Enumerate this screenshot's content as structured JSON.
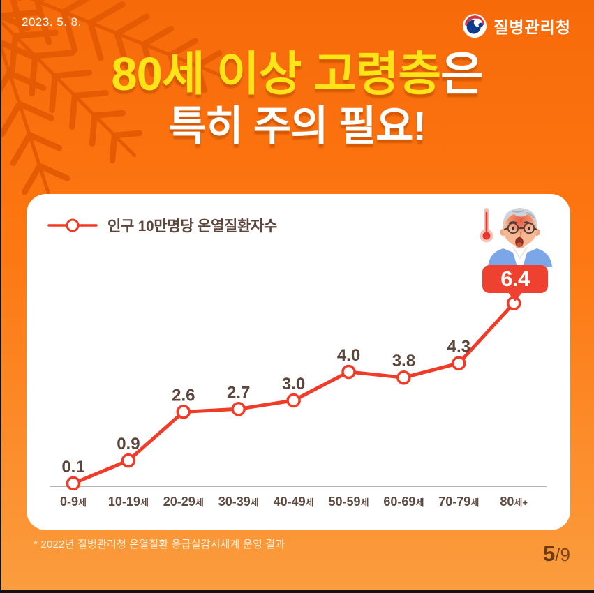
{
  "header": {
    "date": "2023. 5. 8.",
    "agency": "질병관리청"
  },
  "title": {
    "line1_highlight": "80세 이상 고령층",
    "line1_rest": "은",
    "line2": "특히 주의 필요!"
  },
  "chart_data": {
    "type": "line",
    "legend": "인구 10만명당 온열질환자수",
    "categories": [
      "0-9세",
      "10-19세",
      "20-29세",
      "30-39세",
      "40-49세",
      "50-59세",
      "60-69세",
      "70-79세",
      "80세+"
    ],
    "values": [
      0.1,
      0.9,
      2.6,
      2.7,
      3.0,
      4.0,
      3.8,
      4.3,
      6.4
    ],
    "ylim": [
      0,
      7
    ],
    "xlabel": "",
    "ylabel": "",
    "grid": false,
    "legend_position": "top-left",
    "highlight_index": 8,
    "line_color": "#ef3b27",
    "marker_fill": "#ffffff",
    "label_color": "#5c463c",
    "axis_color": "#999999",
    "badge_color": "#ee4130"
  },
  "footnote": "* 2022년 질병관리청 온열질환 응급실감시체계 운영 결과",
  "pagination": {
    "current": "5",
    "separator": "/",
    "total": "9"
  },
  "icons": {
    "agency_logo": "taegeuk-government-symbol",
    "decoration": "palm-leaves",
    "figure": "elderly-man-with-thermometer",
    "legend_marker": "red-line-with-circle"
  },
  "colors": {
    "background_top": "#f76a0a",
    "background_bottom": "#fb9d3e",
    "title_highlight": "#ffe418",
    "title_text": "#ffffff",
    "card": "#ffffff"
  }
}
